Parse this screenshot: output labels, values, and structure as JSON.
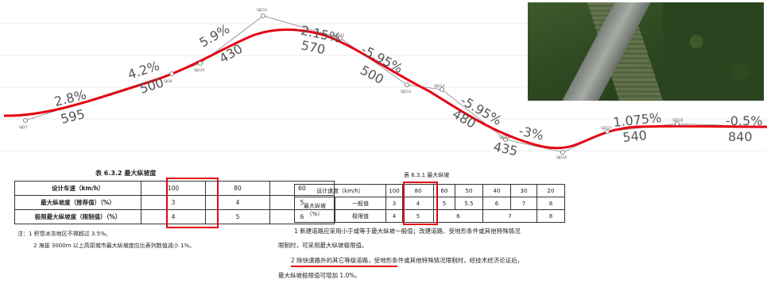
{
  "profile": {
    "grades": [
      {
        "grade": "2.8%",
        "length": "595"
      },
      {
        "grade": "4.2%",
        "length": "500"
      },
      {
        "grade": "5.9%",
        "length": "430"
      },
      {
        "grade": "-2.15%",
        "length": "570"
      },
      {
        "grade": "-5.95%",
        "length": "500"
      },
      {
        "grade": "-5.95%",
        "length": "480"
      },
      {
        "grade": "-3%",
        "length": "435"
      },
      {
        "grade": "1.075%",
        "length": "540"
      },
      {
        "grade": "-0.5%",
        "length": "840"
      }
    ],
    "point_labels": [
      "SJD7",
      "SJD9",
      "SJD10",
      "SJD11",
      "SJD12",
      "SJD13",
      "SJD14",
      "SJD15",
      "SJD16",
      "SJD17",
      "SJD18"
    ]
  },
  "table1": {
    "caption": "表 6.3.2  最大纵坡度",
    "rows": [
      [
        "设计车速（km/h）",
        "100",
        "80",
        "60"
      ],
      [
        "最大纵坡度（推荐值）（%）",
        "3",
        "4",
        "5"
      ],
      [
        "极限最大纵坡度（限制值）（%）",
        "4",
        "5",
        "6"
      ]
    ],
    "note1": "注：1  积雪冰冻地区不得超过 3.5%。",
    "note2": "2  海拔 3000m 以上高原城市最大纵坡度应比表列数值减小 1%。"
  },
  "table2": {
    "caption": "表 6.3.1  最大纵坡",
    "speed_label": "设计速度（km/h）",
    "speeds": [
      "100",
      "80",
      "60",
      "50",
      "40",
      "30",
      "20"
    ],
    "grade_label_1": "最大纵坡",
    "grade_label_2": "（%）",
    "general_label": "一般值",
    "general": [
      "3",
      "4",
      "5",
      "5.5",
      "6",
      "7",
      "8"
    ],
    "limit_label": "极限值",
    "limit": [
      "4",
      "5",
      "6",
      "7",
      "8"
    ]
  },
  "paragraph": {
    "line1": "1  新建道路应采用小于或等于最大纵坡一般值；改建道路、受地形条件或其他特殊情况",
    "line2": "限制时，可采用最大纵坡极限值。",
    "line3_underlined": "2  除快速路外的其它等级道路，",
    "line3_rest": "受地形条件或其他特殊情况限制时，经技术经济论证后，",
    "line4": "最大纵坡极限值可增加 1.0%。"
  },
  "colors": {
    "highlight": "#e60012",
    "profile_line": "#e60012",
    "thin_line": "#888888"
  }
}
